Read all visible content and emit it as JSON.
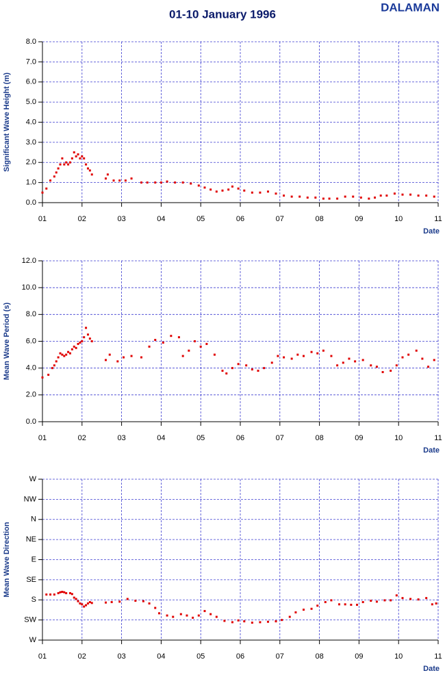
{
  "title": "01-10 January 1996",
  "station": "DALAMAN",
  "chart_data": [
    {
      "type": "scatter",
      "ylabel": "Significant Wave Height (m)",
      "xlabel": "Date",
      "color": "#e00000",
      "grid": true,
      "xlim": [
        1,
        11
      ],
      "xticks": [
        {
          "value": 1,
          "label": "01"
        },
        {
          "value": 2,
          "label": "02"
        },
        {
          "value": 3,
          "label": "03"
        },
        {
          "value": 4,
          "label": "04"
        },
        {
          "value": 5,
          "label": "05"
        },
        {
          "value": 6,
          "label": "06"
        },
        {
          "value": 7,
          "label": "07"
        },
        {
          "value": 8,
          "label": "08"
        },
        {
          "value": 9,
          "label": "09"
        },
        10,
        11
      ],
      "ylim": [
        0,
        8
      ],
      "yticks": [
        {
          "value": 0,
          "label": "0.0"
        },
        {
          "value": 1,
          "label": "1.0"
        },
        {
          "value": 2,
          "label": "2.0"
        },
        {
          "value": 3,
          "label": "3.0"
        },
        {
          "value": 4,
          "label": "4.0"
        },
        {
          "value": 5,
          "label": "5.0"
        },
        {
          "value": 6,
          "label": "6.0"
        },
        {
          "value": 7,
          "label": "7.0"
        },
        {
          "value": 8,
          "label": "8.0"
        }
      ],
      "x": [
        1.0,
        1.1,
        1.2,
        1.3,
        1.35,
        1.4,
        1.45,
        1.5,
        1.55,
        1.6,
        1.65,
        1.7,
        1.75,
        1.8,
        1.85,
        1.9,
        1.95,
        2.0,
        2.05,
        2.1,
        2.15,
        2.2,
        2.25,
        2.6,
        2.65,
        2.8,
        2.95,
        3.1,
        3.25,
        3.5,
        3.65,
        3.85,
        4.0,
        4.15,
        4.35,
        4.55,
        4.75,
        4.95,
        5.1,
        5.25,
        5.4,
        5.55,
        5.7,
        5.8,
        5.95,
        6.1,
        6.3,
        6.5,
        6.7,
        6.9,
        7.1,
        7.3,
        7.5,
        7.7,
        7.9,
        8.1,
        8.25,
        8.45,
        8.65,
        8.85,
        9.05,
        9.25,
        9.4,
        9.55,
        9.7,
        9.9,
        10.1,
        10.3,
        10.5,
        10.7,
        10.9
      ],
      "values": [
        0.5,
        0.7,
        1.1,
        1.3,
        1.5,
        1.7,
        1.9,
        2.2,
        1.9,
        2.0,
        1.9,
        2.0,
        2.2,
        2.5,
        2.3,
        2.4,
        2.2,
        2.3,
        2.2,
        1.9,
        1.7,
        1.6,
        1.4,
        1.2,
        1.4,
        1.1,
        1.1,
        1.1,
        1.2,
        1.0,
        1.0,
        1.0,
        1.0,
        1.05,
        1.0,
        1.0,
        0.95,
        0.85,
        0.75,
        0.65,
        0.55,
        0.6,
        0.65,
        0.8,
        0.7,
        0.6,
        0.5,
        0.5,
        0.55,
        0.45,
        0.35,
        0.3,
        0.3,
        0.25,
        0.25,
        0.2,
        0.2,
        0.2,
        0.3,
        0.3,
        0.25,
        0.2,
        0.25,
        0.35,
        0.35,
        0.45,
        0.4,
        0.4,
        0.35,
        0.35,
        0.3
      ]
    },
    {
      "type": "scatter",
      "ylabel": "Mean Wave Period (s)",
      "xlabel": "Date",
      "color": "#e00000",
      "grid": true,
      "xlim": [
        1,
        11
      ],
      "xticks": [
        {
          "value": 1,
          "label": "01"
        },
        {
          "value": 2,
          "label": "02"
        },
        {
          "value": 3,
          "label": "03"
        },
        {
          "value": 4,
          "label": "04"
        },
        {
          "value": 5,
          "label": "05"
        },
        {
          "value": 6,
          "label": "06"
        },
        {
          "value": 7,
          "label": "07"
        },
        {
          "value": 8,
          "label": "08"
        },
        {
          "value": 9,
          "label": "09"
        },
        10,
        11
      ],
      "ylim": [
        0,
        12
      ],
      "yticks": [
        {
          "value": 0,
          "label": "0.0"
        },
        {
          "value": 2,
          "label": "2.0"
        },
        {
          "value": 4,
          "label": "4.0"
        },
        {
          "value": 6,
          "label": "6.0"
        },
        {
          "value": 8,
          "label": "8.0"
        },
        {
          "value": 10,
          "label": "10.0"
        },
        {
          "value": 12,
          "label": "12.0"
        }
      ],
      "x": [
        1.0,
        1.15,
        1.25,
        1.3,
        1.35,
        1.4,
        1.45,
        1.5,
        1.55,
        1.6,
        1.65,
        1.7,
        1.75,
        1.8,
        1.85,
        1.9,
        1.95,
        2.0,
        2.05,
        2.1,
        2.15,
        2.2,
        2.25,
        2.6,
        2.7,
        2.9,
        3.05,
        3.25,
        3.5,
        3.7,
        3.85,
        4.05,
        4.25,
        4.45,
        4.55,
        4.7,
        4.85,
        5.0,
        5.15,
        5.35,
        5.55,
        5.65,
        5.8,
        5.95,
        6.15,
        6.3,
        6.45,
        6.6,
        6.8,
        6.95,
        7.1,
        7.3,
        7.45,
        7.6,
        7.8,
        7.95,
        8.1,
        8.3,
        8.45,
        8.6,
        8.75,
        8.9,
        9.1,
        9.3,
        9.45,
        9.6,
        9.8,
        9.95,
        10.1,
        10.25,
        10.45,
        10.6,
        10.75,
        10.9
      ],
      "values": [
        3.3,
        3.5,
        4.0,
        4.2,
        4.5,
        4.8,
        5.1,
        5.0,
        4.9,
        5.0,
        5.2,
        5.1,
        5.4,
        5.6,
        5.5,
        5.8,
        5.9,
        6.0,
        6.3,
        7.0,
        6.5,
        6.2,
        6.0,
        4.6,
        5.0,
        4.5,
        4.8,
        4.9,
        4.8,
        5.6,
        6.1,
        5.9,
        6.4,
        6.3,
        4.9,
        5.3,
        6.0,
        5.6,
        5.8,
        5.0,
        3.8,
        3.6,
        4.0,
        4.3,
        4.2,
        3.9,
        3.8,
        4.0,
        4.4,
        4.9,
        4.8,
        4.7,
        5.0,
        4.9,
        5.2,
        5.1,
        5.3,
        4.9,
        4.2,
        4.4,
        4.7,
        4.5,
        4.6,
        4.2,
        4.1,
        3.7,
        3.8,
        4.2,
        4.8,
        5.0,
        5.3,
        4.7,
        4.1,
        4.6
      ]
    },
    {
      "type": "scatter",
      "ylabel": "Mean Wave Direction",
      "xlabel": "Date",
      "color": "#e00000",
      "grid": true,
      "xlim": [
        1,
        11
      ],
      "xticks": [
        {
          "value": 1,
          "label": "01"
        },
        {
          "value": 2,
          "label": "02"
        },
        {
          "value": 3,
          "label": "03"
        },
        {
          "value": 4,
          "label": "04"
        },
        {
          "value": 5,
          "label": "05"
        },
        {
          "value": 6,
          "label": "06"
        },
        {
          "value": 7,
          "label": "07"
        },
        {
          "value": 8,
          "label": "08"
        },
        {
          "value": 9,
          "label": "09"
        },
        10,
        11
      ],
      "ylim": [
        270,
        -90
      ],
      "yticks": [
        {
          "value": 270,
          "label": "W"
        },
        {
          "value": 225,
          "label": "SW"
        },
        {
          "value": 180,
          "label": "S"
        },
        {
          "value": 135,
          "label": "SE"
        },
        {
          "value": 90,
          "label": "E"
        },
        {
          "value": 45,
          "label": "NE"
        },
        {
          "value": 0,
          "label": "N"
        },
        {
          "value": -45,
          "label": "NW"
        },
        {
          "value": -90,
          "label": "W"
        }
      ],
      "x": [
        1.1,
        1.2,
        1.3,
        1.4,
        1.45,
        1.5,
        1.55,
        1.6,
        1.7,
        1.75,
        1.8,
        1.85,
        1.9,
        1.95,
        2.0,
        2.05,
        2.1,
        2.15,
        2.2,
        2.25,
        2.6,
        2.75,
        2.95,
        3.15,
        3.35,
        3.55,
        3.7,
        3.85,
        3.95,
        4.15,
        4.3,
        4.5,
        4.65,
        4.8,
        4.95,
        5.1,
        5.25,
        5.4,
        5.6,
        5.8,
        5.95,
        6.1,
        6.3,
        6.5,
        6.7,
        6.9,
        7.05,
        7.25,
        7.4,
        7.6,
        7.8,
        7.95,
        8.15,
        8.3,
        8.5,
        8.65,
        8.8,
        8.95,
        9.1,
        9.3,
        9.45,
        9.65,
        9.8,
        9.95,
        10.1,
        10.3,
        10.5,
        10.7,
        10.85,
        10.95
      ],
      "values": [
        168,
        168,
        168,
        165,
        163,
        162,
        163,
        165,
        165,
        167,
        175,
        178,
        183,
        188,
        190,
        195,
        192,
        188,
        185,
        187,
        186,
        185,
        184,
        178,
        182,
        183,
        188,
        198,
        210,
        215,
        218,
        212,
        215,
        220,
        215,
        205,
        212,
        218,
        227,
        230,
        226,
        228,
        231,
        230,
        229,
        228,
        225,
        218,
        208,
        202,
        200,
        193,
        185,
        181,
        190,
        190,
        191,
        191,
        185,
        182,
        184,
        181,
        181,
        170,
        176,
        178,
        179,
        176,
        190,
        188
      ]
    }
  ]
}
